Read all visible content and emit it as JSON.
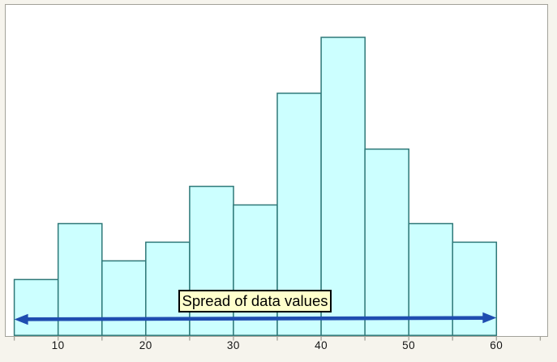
{
  "colors": {
    "background": "#f6f4ed",
    "plot_background": "#ffffff",
    "plot_border": "#a3a29a",
    "bar_fill": "#ccffff",
    "bar_stroke": "#2e7878",
    "arrow_color": "#1f4db0",
    "annotation_background": "#ffffcc",
    "annotation_border": "#000000",
    "annotation_text_color": "#000000",
    "tick_label_color": "#151515"
  },
  "chart_data": {
    "type": "bar",
    "subtype": "histogram",
    "title": "",
    "xlabel": "",
    "ylabel": "",
    "bin_edges": [
      5,
      10,
      15,
      20,
      25,
      30,
      35,
      40,
      45,
      50,
      55,
      60
    ],
    "counts": [
      3,
      6,
      4,
      5,
      8,
      7,
      13,
      16,
      10,
      6,
      5
    ],
    "x_ticks": [
      {
        "value": 10,
        "label": "10"
      },
      {
        "value": 20,
        "label": "20"
      },
      {
        "value": 30,
        "label": "30"
      },
      {
        "value": 40,
        "label": "40"
      },
      {
        "value": 50,
        "label": "50"
      },
      {
        "value": 60,
        "label": "60"
      }
    ],
    "x_minor_ticks": [
      5,
      10,
      15,
      20,
      25,
      30,
      35,
      40,
      45,
      50,
      55,
      60,
      65
    ],
    "xlim": [
      4,
      66
    ],
    "ylim": [
      0,
      16.5
    ],
    "grid": false,
    "legend": false,
    "annotation": {
      "text": "Spread of data values",
      "arrow_span": [
        5,
        60
      ]
    }
  }
}
